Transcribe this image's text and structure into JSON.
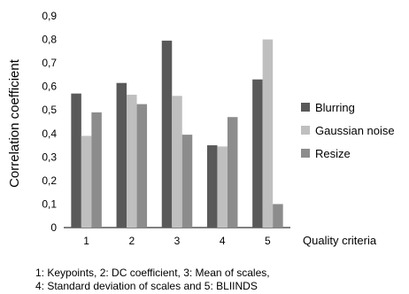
{
  "chart_data": {
    "type": "bar",
    "categories": [
      "1",
      "2",
      "3",
      "4",
      "5"
    ],
    "series": [
      {
        "name": "Blurring",
        "values": [
          0.57,
          0.615,
          0.795,
          0.35,
          0.63
        ],
        "color": "#595959"
      },
      {
        "name": "Gaussian noise",
        "values": [
          0.39,
          0.565,
          0.56,
          0.345,
          0.8
        ],
        "color": "#bfbfbf"
      },
      {
        "name": "Resize",
        "values": [
          0.49,
          0.525,
          0.395,
          0.47,
          0.1
        ],
        "color": "#8c8c8c"
      }
    ],
    "ylabel": "Correlation coefficient",
    "xlabel": "Quality criteria",
    "ylim": [
      0,
      0.9
    ],
    "yticks": [
      "0",
      "0,1",
      "0,2",
      "0,3",
      "0,4",
      "0,5",
      "0,6",
      "0,7",
      "0,8",
      "0,9"
    ],
    "grid": false,
    "legend_position": "right"
  },
  "caption": {
    "line1": "1: Keypoints, 2: DC coefficient, 3: Mean of scales,",
    "line2": "4: Standard deviation of scales and 5: BLIINDS"
  }
}
